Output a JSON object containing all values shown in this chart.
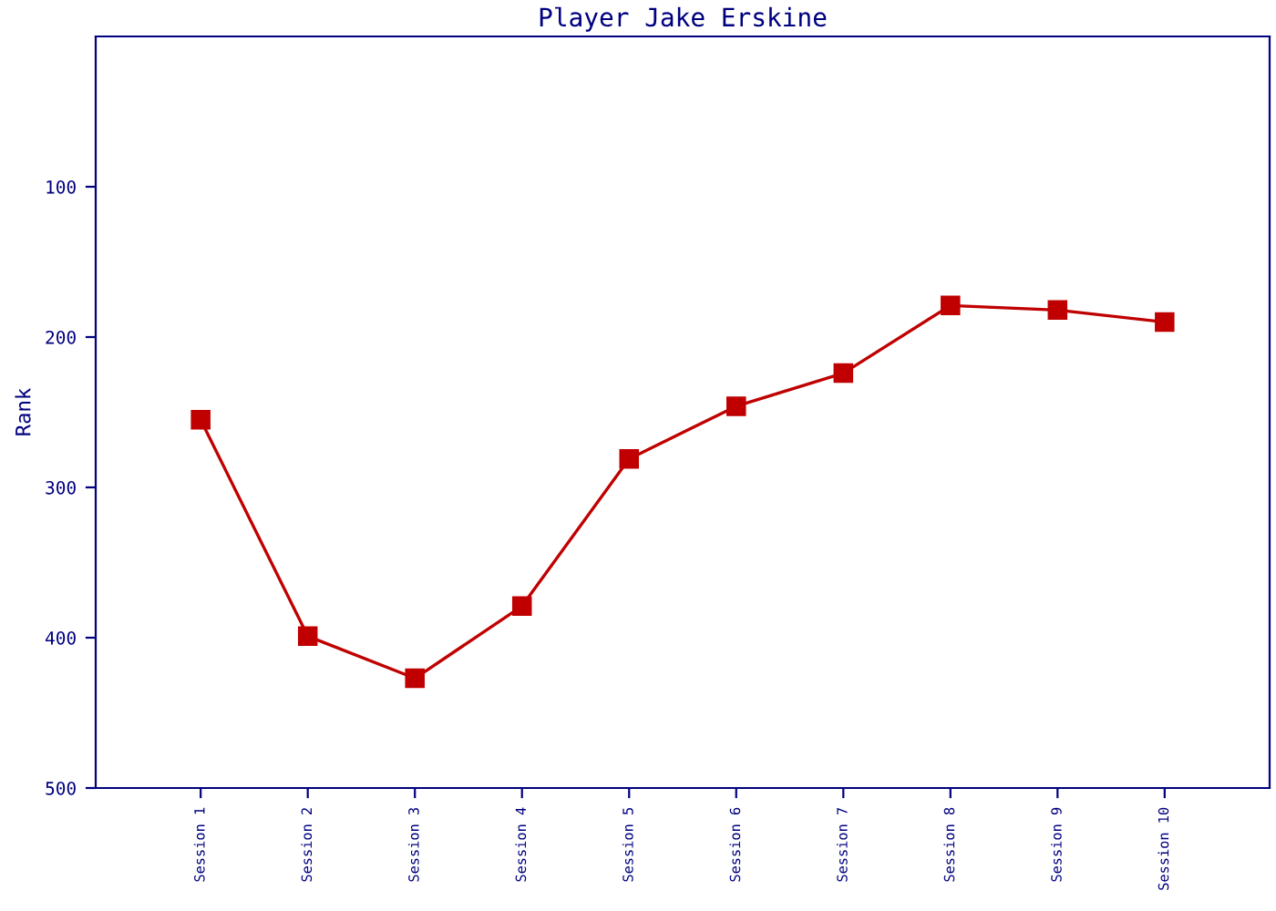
{
  "chart_data": {
    "type": "line",
    "title": "Player Jake Erskine",
    "ylabel": "Rank",
    "categories": [
      "Session 1",
      "Session 2",
      "Session 3",
      "Session 4",
      "Session 5",
      "Session 6",
      "Session 7",
      "Session 8",
      "Session 9",
      "Session 10"
    ],
    "series": [
      {
        "color": "#c00000",
        "values": [
          255,
          399,
          427,
          379,
          281,
          246,
          224,
          179,
          182,
          190
        ]
      }
    ],
    "ylim": [
      500,
      0
    ],
    "yticks": [
      100,
      200,
      300,
      400,
      500
    ],
    "marker": "square",
    "line_style": "solid",
    "grid": false,
    "legend": false
  }
}
